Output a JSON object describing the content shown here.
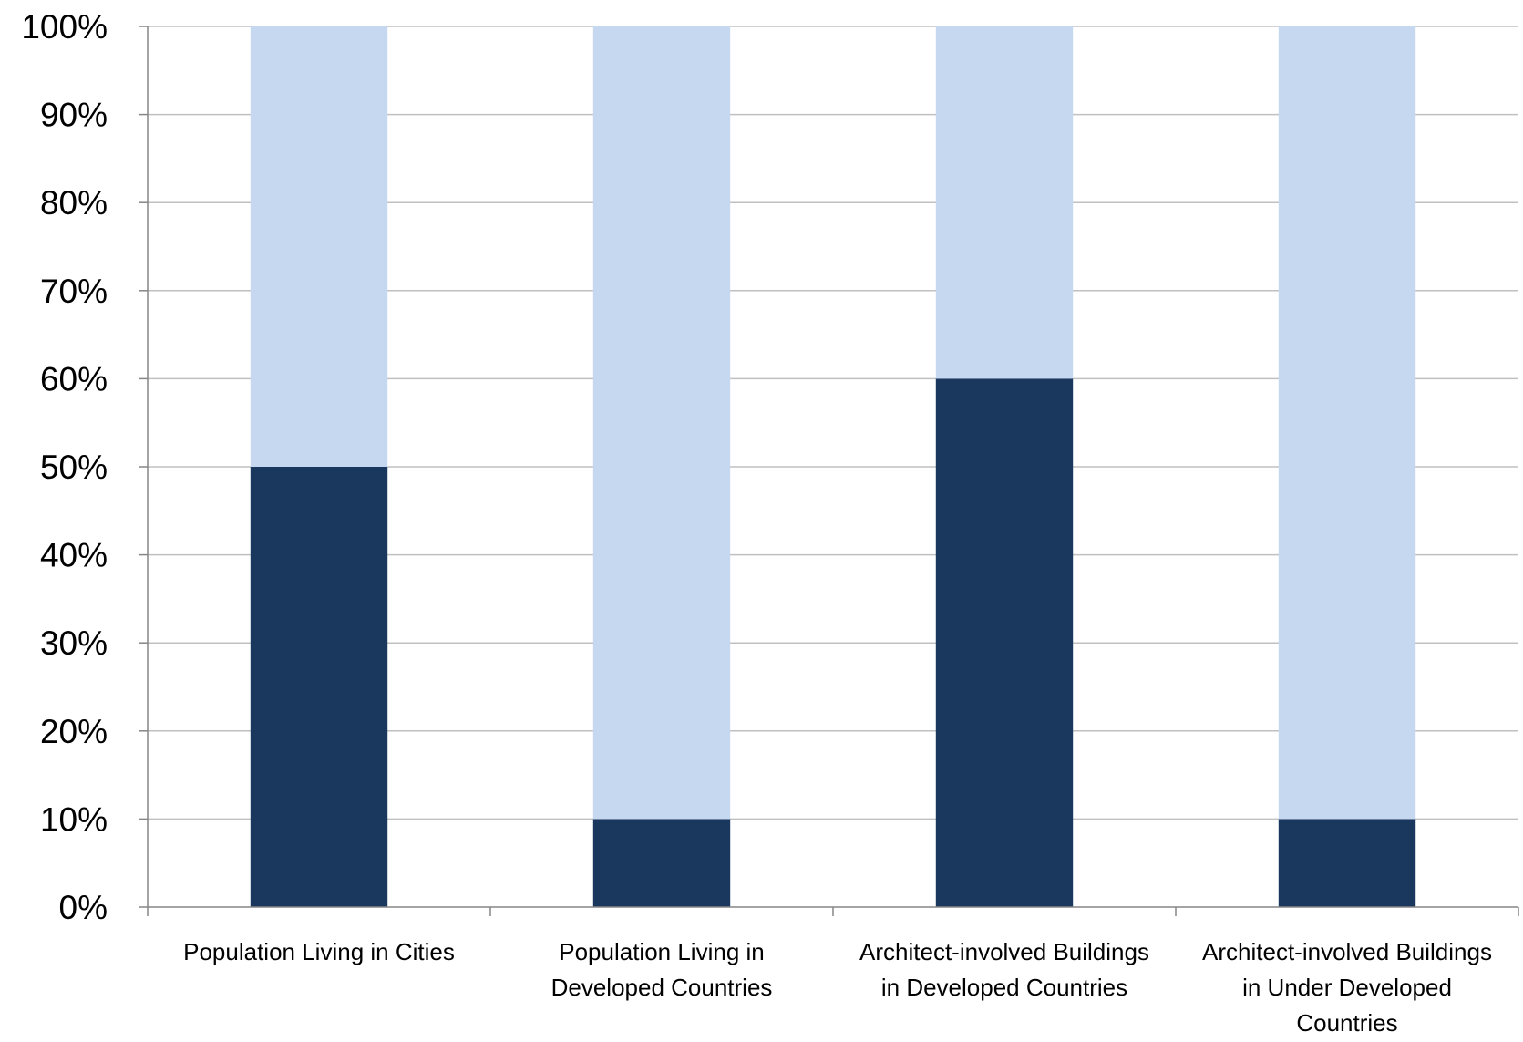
{
  "chart_data": {
    "type": "bar",
    "stacked": true,
    "normalized": true,
    "categories": [
      [
        "Population Living in Cities"
      ],
      [
        "Population Living in",
        "Developed Countries"
      ],
      [
        "Architect-involved Buildings",
        "in Developed Countries"
      ],
      [
        "Architect-involved Buildings",
        "in Under Developed",
        "Countries"
      ]
    ],
    "series": [
      {
        "values": [
          50,
          10,
          60,
          10
        ],
        "color": "#1a385e"
      },
      {
        "values": [
          50,
          90,
          40,
          90
        ],
        "color": "#c6d8f0"
      }
    ],
    "ylim": [
      0,
      100
    ],
    "y_ticks": [
      "0%",
      "10%",
      "20%",
      "30%",
      "40%",
      "50%",
      "60%",
      "70%",
      "80%",
      "90%",
      "100%"
    ],
    "grid": true,
    "legend": "none",
    "colors": {
      "grid": "#c0c0c0",
      "axis": "#868686"
    }
  }
}
